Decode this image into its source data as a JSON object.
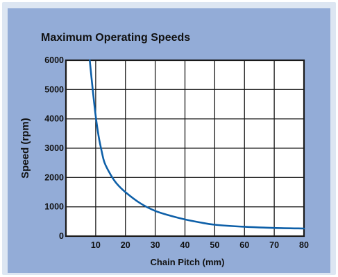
{
  "chart_data": {
    "type": "line",
    "title": "Maximum Operating Speeds",
    "xlabel": "Chain Pitch (mm)",
    "ylabel": "Speed (rpm)",
    "xlim": [
      0,
      80
    ],
    "ylim": [
      0,
      6000
    ],
    "x_ticks": [
      10,
      20,
      30,
      40,
      50,
      60,
      70,
      80
    ],
    "y_ticks": [
      0,
      1000,
      2000,
      3000,
      4000,
      5000,
      6000
    ],
    "x_tick_labels": [
      "10",
      "20",
      "30",
      "40",
      "50",
      "60",
      "70",
      "80"
    ],
    "y_tick_labels": [
      "0",
      "1000",
      "2000",
      "3000",
      "4000",
      "5000",
      "6000"
    ],
    "grid": true,
    "line_color": "#0d5fa8",
    "series": [
      {
        "x": [
          8,
          9,
          10,
          11,
          12,
          13,
          15,
          17,
          20,
          25,
          30,
          35,
          40,
          45,
          50,
          60,
          70,
          80
        ],
        "values": [
          6000,
          5000,
          4100,
          3400,
          2900,
          2500,
          2100,
          1800,
          1500,
          1120,
          860,
          700,
          570,
          470,
          390,
          320,
          280,
          260
        ]
      }
    ]
  }
}
